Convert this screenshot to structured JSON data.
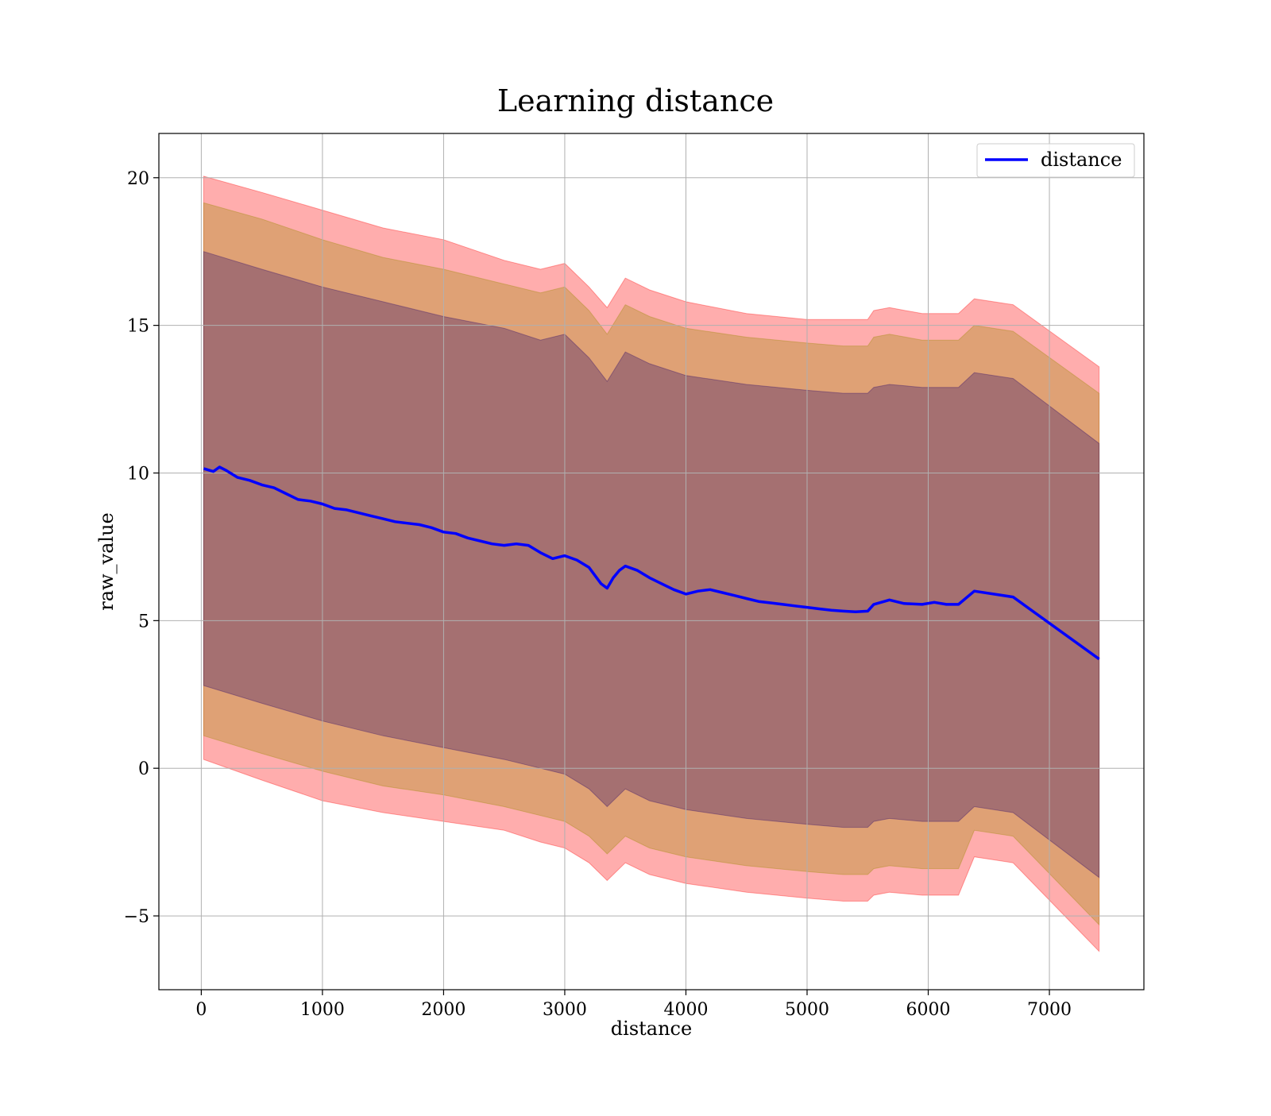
{
  "chart_data": {
    "type": "line",
    "title": "Learning distance",
    "xlabel": "distance",
    "ylabel": "raw_value",
    "xlim": [
      -350,
      7780
    ],
    "ylim": [
      -7.5,
      21.5
    ],
    "xticks": [
      0,
      1000,
      2000,
      3000,
      4000,
      5000,
      6000,
      7000
    ],
    "yticks": [
      -5,
      0,
      5,
      10,
      15,
      20
    ],
    "ytick_labels": [
      "−5",
      "0",
      "5",
      "10",
      "15",
      "20"
    ],
    "grid": true,
    "legend_position": "top-right",
    "series": [
      {
        "name": "distance",
        "color": "#0000ff",
        "x": [
          20,
          100,
          150,
          200,
          300,
          400,
          500,
          600,
          700,
          800,
          900,
          1000,
          1100,
          1200,
          1300,
          1400,
          1500,
          1600,
          1700,
          1800,
          1900,
          2000,
          2100,
          2200,
          2300,
          2400,
          2500,
          2600,
          2700,
          2800,
          2900,
          3000,
          3100,
          3200,
          3300,
          3350,
          3400,
          3450,
          3500,
          3600,
          3700,
          3800,
          3900,
          4000,
          4100,
          4200,
          4300,
          4400,
          4500,
          4600,
          4700,
          4800,
          4900,
          5000,
          5100,
          5200,
          5300,
          5400,
          5500,
          5550,
          5680,
          5800,
          5950,
          6050,
          6150,
          6250,
          6380,
          6700,
          7410
        ],
        "y": [
          10.15,
          10.05,
          10.2,
          10.1,
          9.85,
          9.75,
          9.6,
          9.5,
          9.3,
          9.1,
          9.05,
          8.95,
          8.8,
          8.75,
          8.65,
          8.55,
          8.45,
          8.35,
          8.3,
          8.25,
          8.15,
          8.0,
          7.95,
          7.8,
          7.7,
          7.6,
          7.55,
          7.6,
          7.55,
          7.3,
          7.1,
          7.2,
          7.05,
          6.8,
          6.25,
          6.1,
          6.45,
          6.7,
          6.85,
          6.7,
          6.45,
          6.25,
          6.05,
          5.9,
          6.0,
          6.05,
          5.95,
          5.85,
          5.75,
          5.65,
          5.6,
          5.55,
          5.5,
          5.45,
          5.4,
          5.35,
          5.32,
          5.3,
          5.32,
          5.55,
          5.7,
          5.58,
          5.55,
          5.62,
          5.55,
          5.55,
          6.0,
          5.8,
          3.7
        ]
      }
    ],
    "bands": [
      {
        "color": "#ff0000",
        "opacity": 0.32,
        "x": [
          20,
          500,
          1000,
          1500,
          2000,
          2500,
          2800,
          3000,
          3200,
          3350,
          3500,
          3700,
          4000,
          4500,
          5000,
          5300,
          5500,
          5550,
          5680,
          5950,
          6250,
          6380,
          6700,
          7410
        ],
        "upper": [
          20.05,
          19.5,
          18.9,
          18.3,
          17.9,
          17.2,
          16.9,
          17.1,
          16.3,
          15.6,
          16.6,
          16.2,
          15.8,
          15.4,
          15.2,
          15.2,
          15.2,
          15.5,
          15.6,
          15.4,
          15.4,
          15.9,
          15.7,
          13.6
        ],
        "lower": [
          0.3,
          -0.4,
          -1.1,
          -1.5,
          -1.8,
          -2.1,
          -2.5,
          -2.7,
          -3.2,
          -3.8,
          -3.2,
          -3.6,
          -3.9,
          -4.2,
          -4.4,
          -4.5,
          -4.5,
          -4.3,
          -4.2,
          -4.3,
          -4.3,
          -3.0,
          -3.2,
          -6.2
        ]
      },
      {
        "color": "#9a8a00",
        "opacity": 0.32,
        "x": [
          20,
          500,
          1000,
          1500,
          2000,
          2500,
          2800,
          3000,
          3200,
          3350,
          3500,
          3700,
          4000,
          4500,
          5000,
          5300,
          5500,
          5550,
          5680,
          5950,
          6250,
          6380,
          6700,
          7410
        ],
        "upper": [
          19.15,
          18.6,
          17.9,
          17.3,
          16.9,
          16.4,
          16.1,
          16.3,
          15.5,
          14.7,
          15.7,
          15.3,
          14.9,
          14.6,
          14.4,
          14.3,
          14.3,
          14.6,
          14.7,
          14.5,
          14.5,
          15.0,
          14.8,
          12.7
        ],
        "lower": [
          1.1,
          0.5,
          -0.1,
          -0.6,
          -0.9,
          -1.3,
          -1.6,
          -1.8,
          -2.3,
          -2.9,
          -2.3,
          -2.7,
          -3.0,
          -3.3,
          -3.5,
          -3.6,
          -3.6,
          -3.4,
          -3.3,
          -3.4,
          -3.4,
          -2.1,
          -2.3,
          -5.3
        ]
      },
      {
        "color": "#2a0a6a",
        "opacity": 0.32,
        "x": [
          20,
          500,
          1000,
          1500,
          2000,
          2500,
          2800,
          3000,
          3200,
          3350,
          3500,
          3700,
          4000,
          4500,
          5000,
          5300,
          5500,
          5550,
          5680,
          5950,
          6250,
          6380,
          6700,
          7410
        ],
        "upper": [
          17.5,
          16.9,
          16.3,
          15.8,
          15.3,
          14.9,
          14.5,
          14.7,
          13.9,
          13.1,
          14.1,
          13.7,
          13.3,
          13.0,
          12.8,
          12.7,
          12.7,
          12.9,
          13.0,
          12.9,
          12.9,
          13.4,
          13.2,
          11.0
        ],
        "lower": [
          2.8,
          2.2,
          1.6,
          1.1,
          0.7,
          0.3,
          0.0,
          -0.2,
          -0.7,
          -1.3,
          -0.7,
          -1.1,
          -1.4,
          -1.7,
          -1.9,
          -2.0,
          -2.0,
          -1.8,
          -1.7,
          -1.8,
          -1.8,
          -1.3,
          -1.5,
          -3.7
        ]
      }
    ]
  }
}
